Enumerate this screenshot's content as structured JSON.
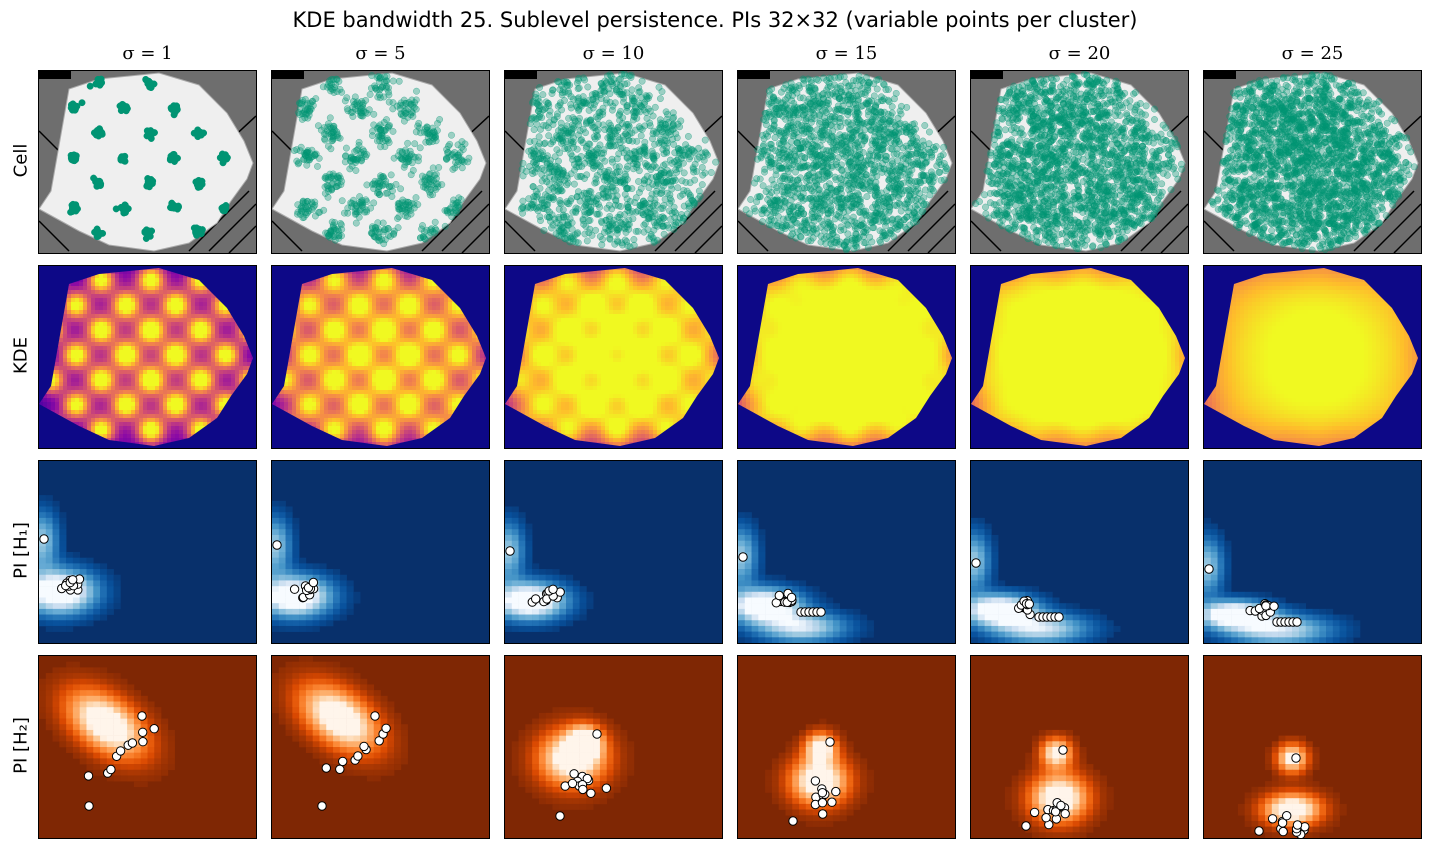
{
  "title": "KDE bandwidth 25. Sublevel persistence. PIs 32×32 (variable points per cluster)",
  "columns": [
    {
      "sigma_label": "σ = 1",
      "sigma": 1
    },
    {
      "sigma_label": "σ = 5",
      "sigma": 5
    },
    {
      "sigma_label": "σ = 10",
      "sigma": 10
    },
    {
      "sigma_label": "σ = 15",
      "sigma": 15
    },
    {
      "sigma_label": "σ = 20",
      "sigma": 20
    },
    {
      "sigma_label": "σ = 25",
      "sigma": 25
    }
  ],
  "rows": [
    {
      "label": "Cell",
      "kind": "cell"
    },
    {
      "label": "KDE",
      "kind": "kde"
    },
    {
      "label": "PI [H₁]",
      "kind": "pi_h1"
    },
    {
      "label": "PI [H₂]",
      "kind": "pi_h2"
    }
  ],
  "colors": {
    "cell_background": "#6e6e6e",
    "cell_interior": "#efefef",
    "cell_points": "#009473",
    "kde_low": "#0d0887",
    "kde_mid": "#cc4778",
    "kde_high": "#f0f921",
    "pi_h1_low": "#08306b",
    "pi_h1_high": "#f7fbff",
    "pi_h2_low": "#7f2704",
    "pi_h2_high": "#fff5eb"
  },
  "chart_data": {
    "type": "heatmap",
    "description_rows": [
      "Cell",
      "KDE",
      "PI [H₁]",
      "PI [H₂]"
    ],
    "description_columns": [
      "σ = 1",
      "σ = 5",
      "σ = 10",
      "σ = 15",
      "σ = 20",
      "σ = 25"
    ],
    "axes_ticks": "none",
    "pi_resolution": [
      32,
      32
    ]
  }
}
